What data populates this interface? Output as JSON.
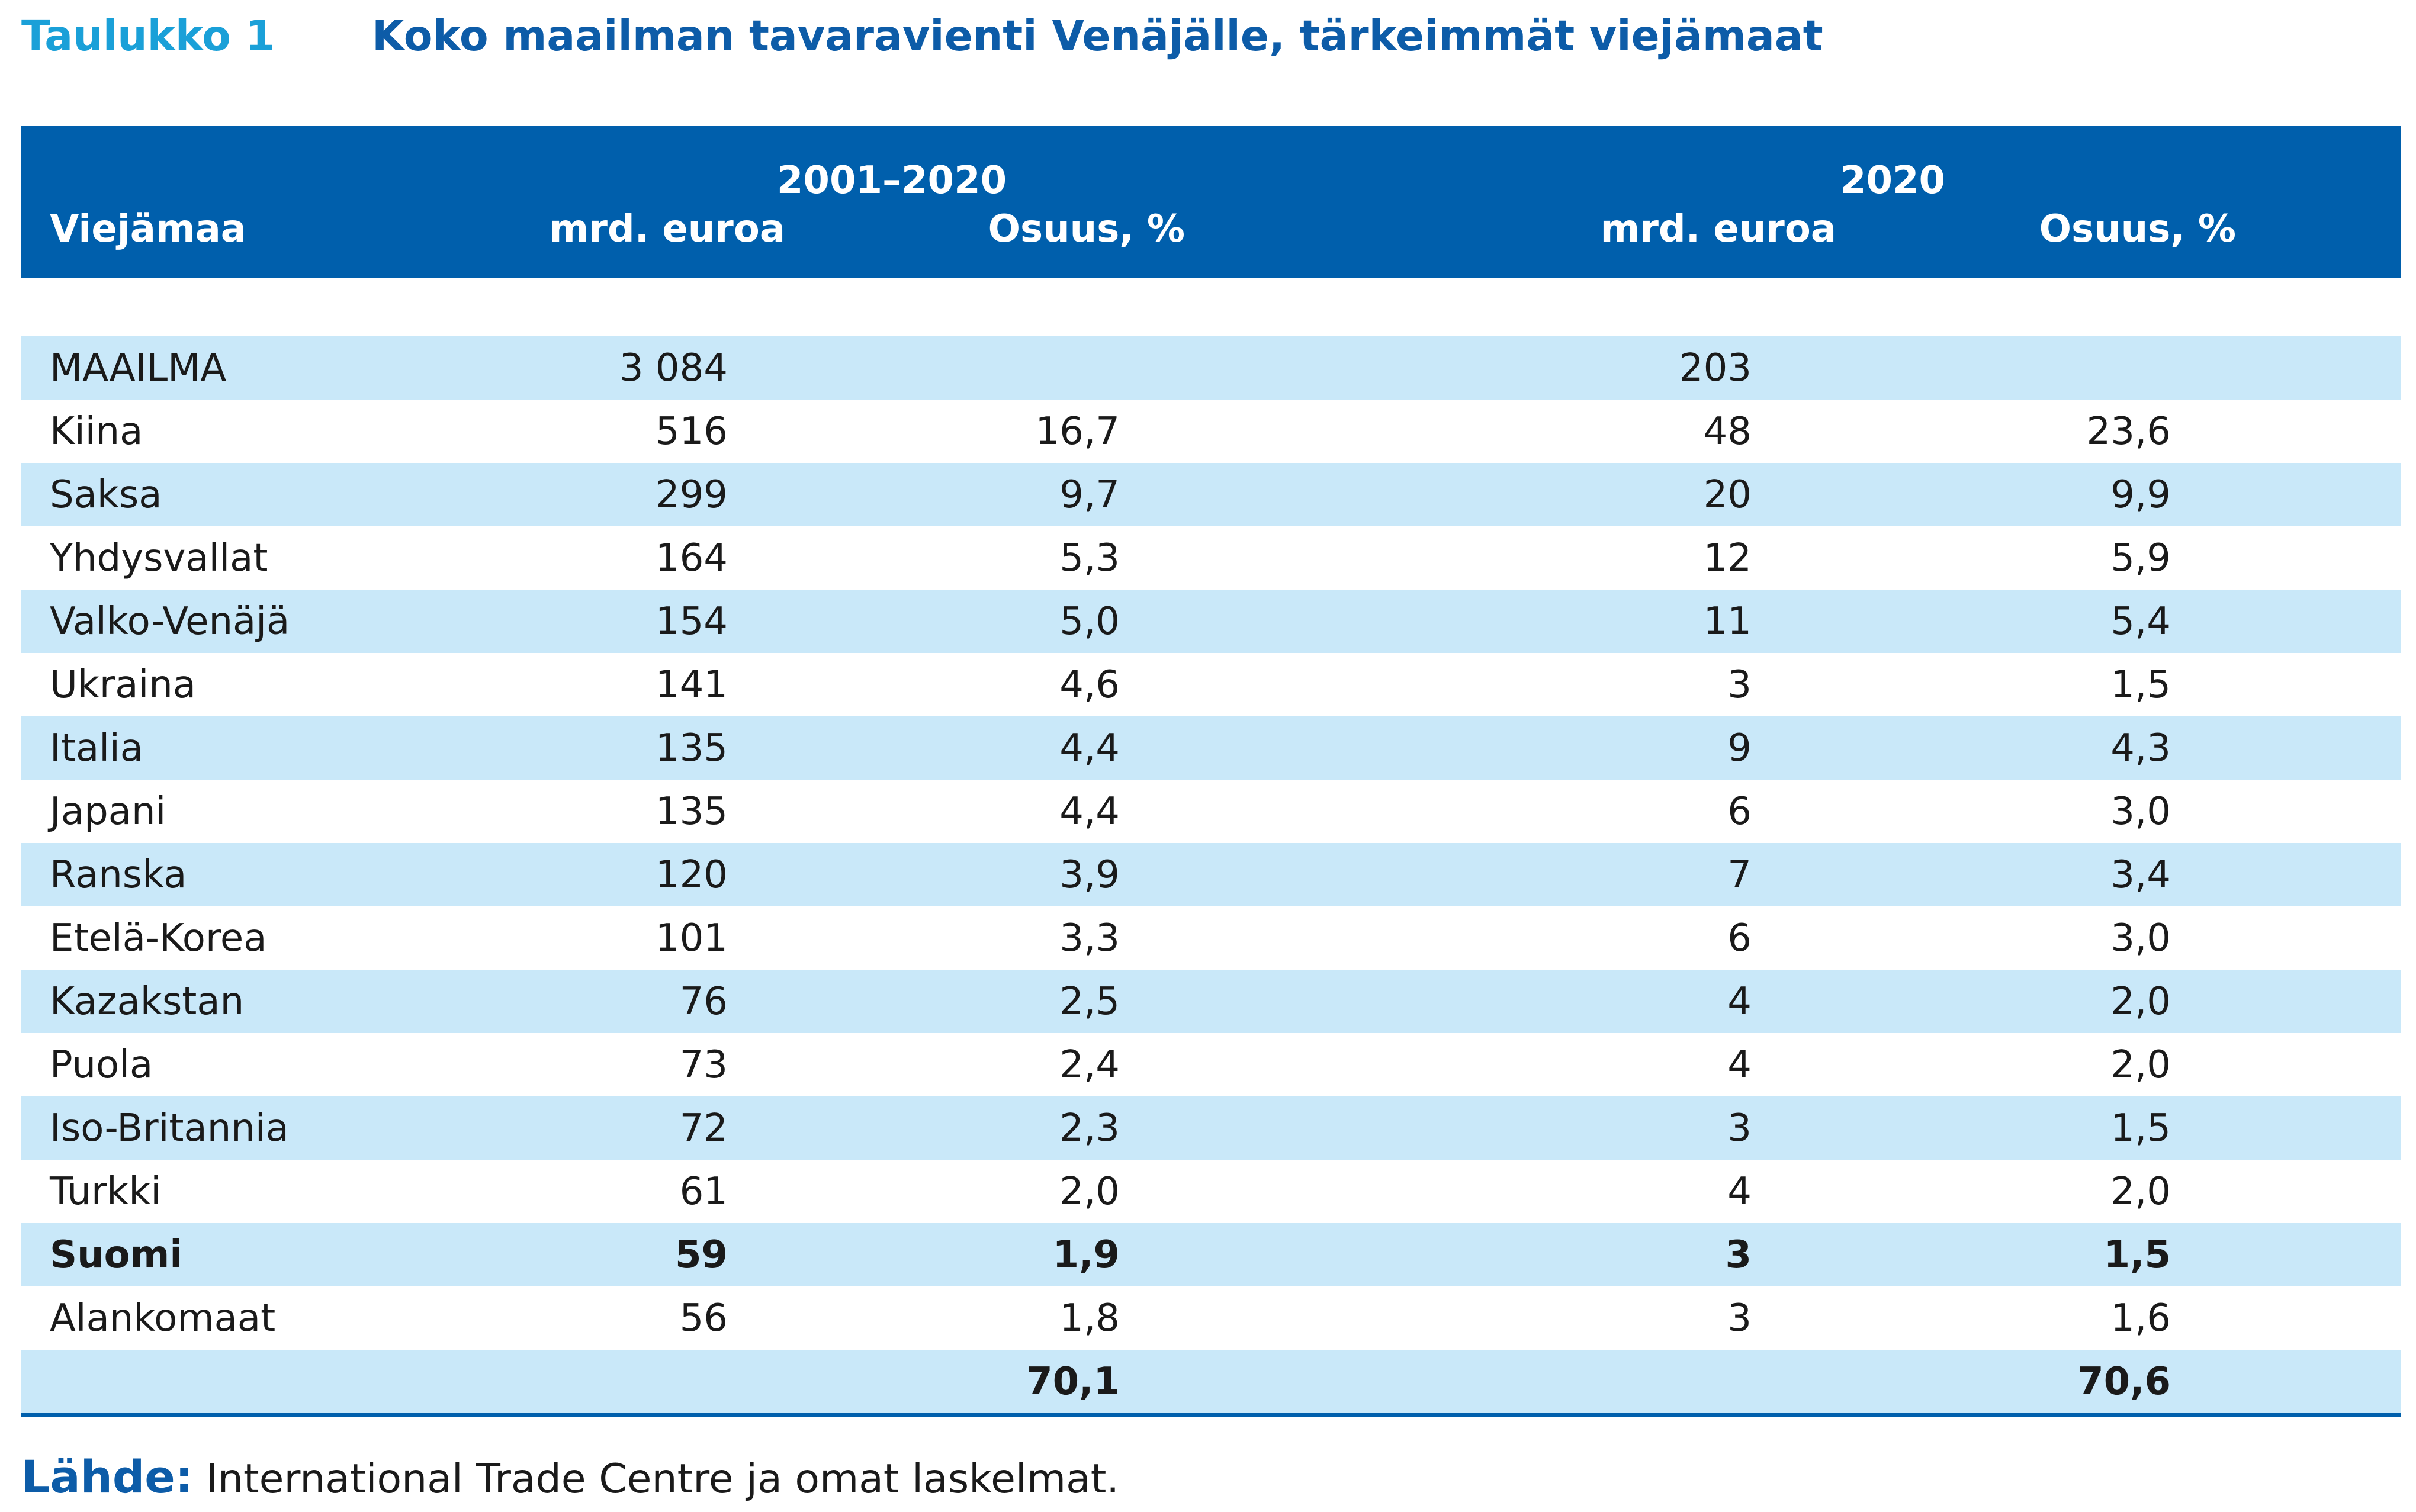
{
  "table_label": "Taulukko 1",
  "table_title": "Koko maailman tavaravienti Venäjälle, tärkeimmät viejämaat",
  "header": {
    "period_1": "2001–2020",
    "period_2": "2020",
    "country": "Viejämaa",
    "value_1": "mrd. euroa",
    "share_1": "Osuus, %",
    "value_2": "mrd. euroa",
    "share_2": "Osuus, %"
  },
  "rows": [
    {
      "country": "MAAILMA",
      "v1": "3 084",
      "s1": "",
      "v2": "203",
      "s2": ""
    },
    {
      "country": "Kiina",
      "v1": "516",
      "s1": "16,7",
      "v2": "48",
      "s2": "23,6"
    },
    {
      "country": "Saksa",
      "v1": "299",
      "s1": "9,7",
      "v2": "20",
      "s2": "9,9"
    },
    {
      "country": "Yhdysvallat",
      "v1": "164",
      "s1": "5,3",
      "v2": "12",
      "s2": "5,9"
    },
    {
      "country": "Valko-Venäjä",
      "v1": "154",
      "s1": "5,0",
      "v2": "11",
      "s2": "5,4"
    },
    {
      "country": "Ukraina",
      "v1": "141",
      "s1": "4,6",
      "v2": "3",
      "s2": "1,5"
    },
    {
      "country": "Italia",
      "v1": "135",
      "s1": "4,4",
      "v2": "9",
      "s2": "4,3"
    },
    {
      "country": "Japani",
      "v1": "135",
      "s1": "4,4",
      "v2": "6",
      "s2": "3,0"
    },
    {
      "country": "Ranska",
      "v1": "120",
      "s1": "3,9",
      "v2": "7",
      "s2": "3,4"
    },
    {
      "country": "Etelä-Korea",
      "v1": "101",
      "s1": "3,3",
      "v2": "6",
      "s2": "3,0"
    },
    {
      "country": "Kazakstan",
      "v1": "76",
      "s1": "2,5",
      "v2": "4",
      "s2": "2,0"
    },
    {
      "country": "Puola",
      "v1": "73",
      "s1": "2,4",
      "v2": "4",
      "s2": "2,0"
    },
    {
      "country": "Iso-Britannia",
      "v1": "72",
      "s1": "2,3",
      "v2": "3",
      "s2": "1,5"
    },
    {
      "country": "Turkki",
      "v1": "61",
      "s1": "2,0",
      "v2": "4",
      "s2": "2,0"
    },
    {
      "country": "Suomi",
      "v1": "59",
      "s1": "1,9",
      "v2": "3",
      "s2": "1,5"
    },
    {
      "country": "Alankomaat",
      "v1": "56",
      "s1": "1,8",
      "v2": "3",
      "s2": "1,6"
    },
    {
      "country": "",
      "v1": "",
      "s1": "70,1",
      "v2": "",
      "s2": "70,6"
    }
  ],
  "source_label": "Lähde:",
  "source_text": "International Trade Centre ja omat laskelmat.",
  "colors": {
    "header_bg": "#005fac",
    "row_shade": "#c9e8f9",
    "label": "#1aa0d8",
    "title": "#0d5ca8"
  }
}
